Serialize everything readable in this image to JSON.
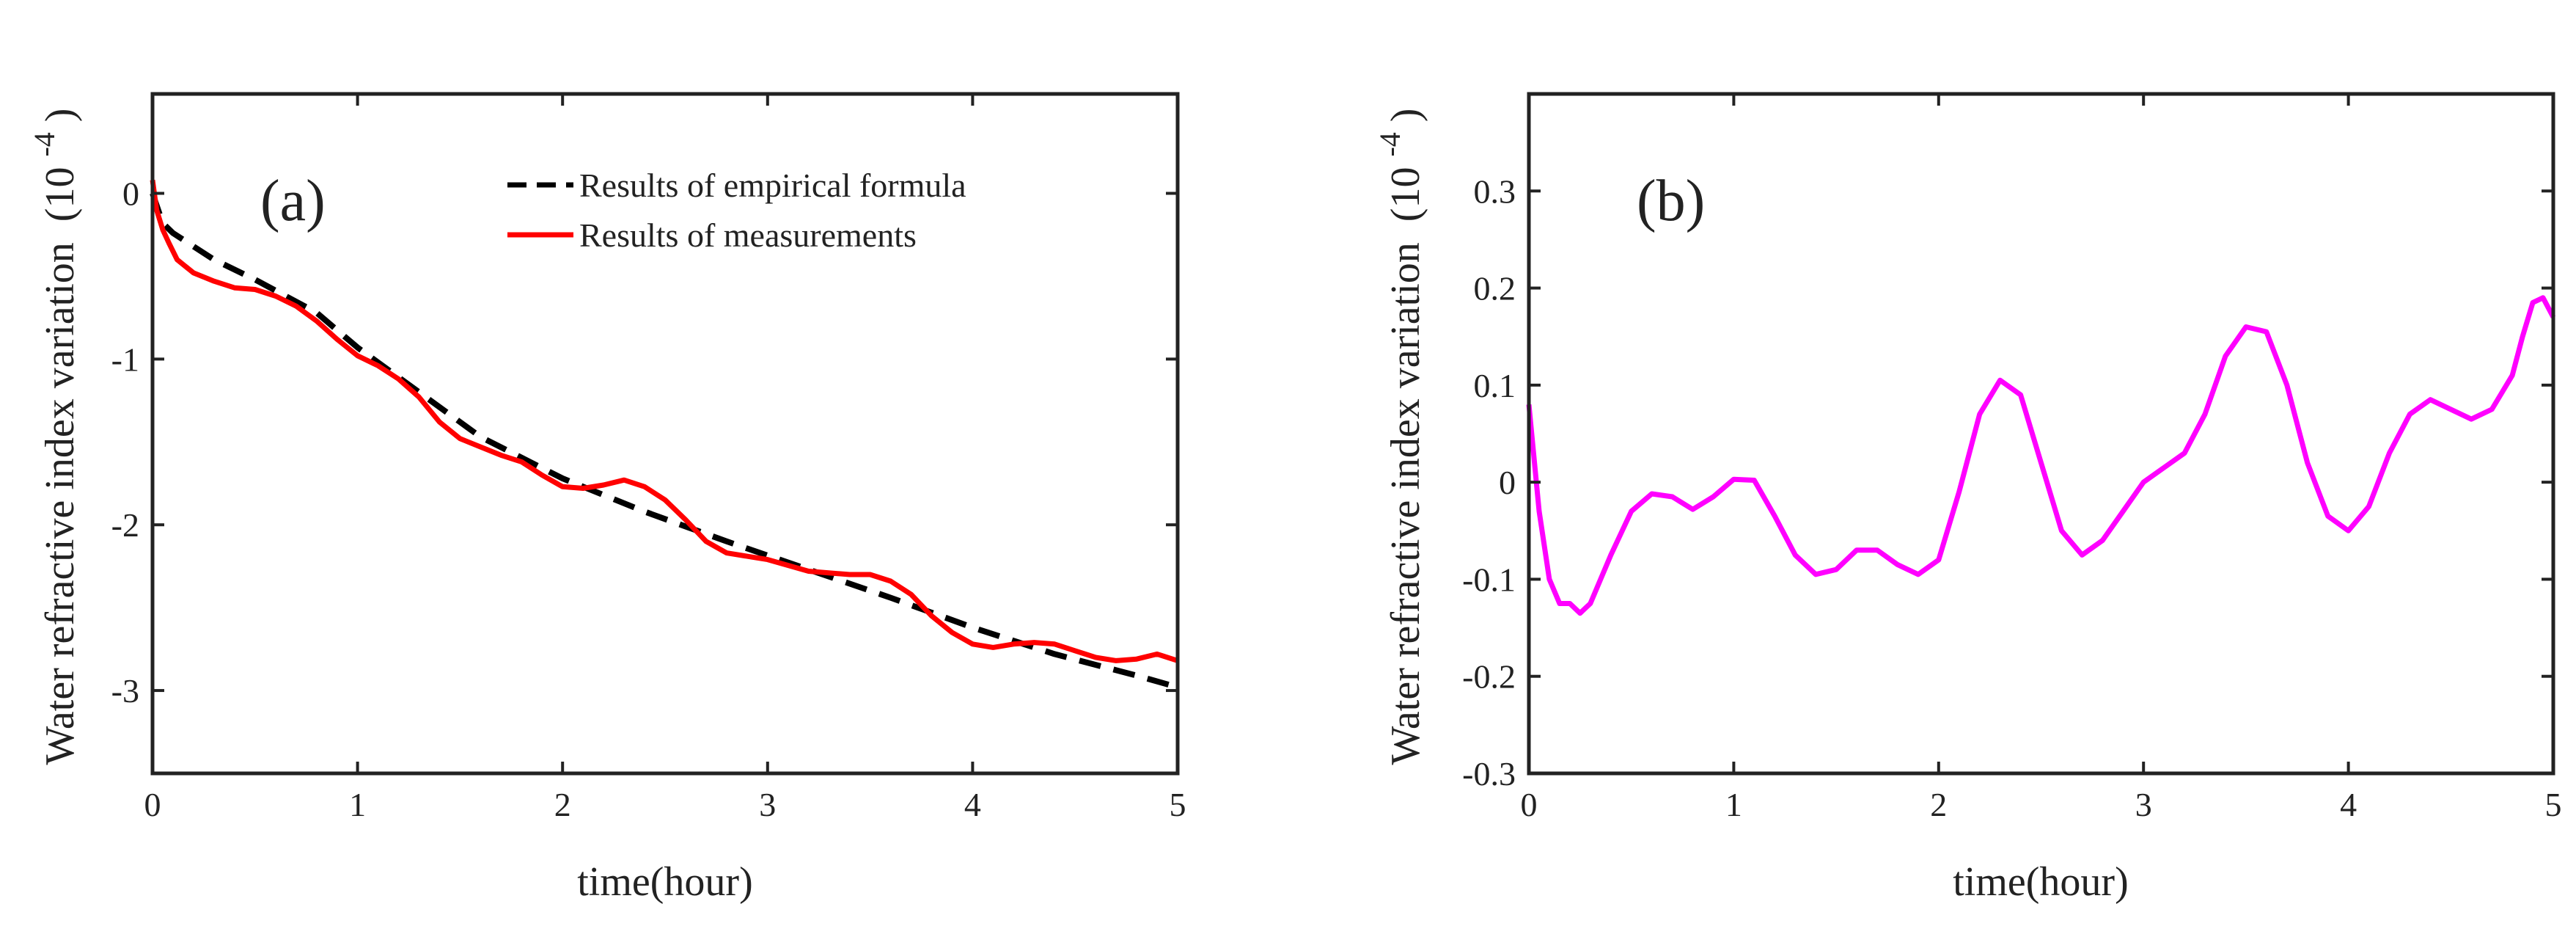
{
  "chart_data": [
    {
      "panel_label": "(a)",
      "type": "line",
      "xlabel": "time(hour)",
      "ylabel": "Water refractive index variation",
      "ylabel_unit_base": "(10",
      "ylabel_unit_exp": "-4",
      "ylabel_unit_close": ")",
      "xlim": [
        0,
        5
      ],
      "ylim": [
        -3.5,
        0.6
      ],
      "xticks": [
        0,
        1,
        2,
        3,
        4,
        5
      ],
      "xtick_labels": [
        "0",
        "1",
        "2",
        "3",
        "4",
        "5"
      ],
      "yticks": [
        0,
        -1,
        -2,
        -3
      ],
      "ytick_labels": [
        "0",
        "-1",
        "-2",
        "-3"
      ],
      "grid": false,
      "legend_position": "top-right",
      "series": [
        {
          "name": "Results of empirical formula",
          "color": "#000000",
          "style": "dashed",
          "x": [
            0,
            0.05,
            0.1,
            0.2,
            0.3,
            0.5,
            0.8,
            1.0,
            1.3,
            1.6,
            2.0,
            2.4,
            2.8,
            3.2,
            3.6,
            4.0,
            4.4,
            4.8,
            5.0
          ],
          "y": [
            0.0,
            -0.18,
            -0.24,
            -0.32,
            -0.4,
            -0.52,
            -0.72,
            -0.93,
            -1.2,
            -1.47,
            -1.72,
            -1.92,
            -2.1,
            -2.27,
            -2.44,
            -2.62,
            -2.78,
            -2.91,
            -2.98
          ]
        },
        {
          "name": "Results of measurements",
          "color": "#ff0000",
          "style": "solid",
          "x": [
            0,
            0.02,
            0.05,
            0.08,
            0.12,
            0.2,
            0.3,
            0.4,
            0.5,
            0.6,
            0.7,
            0.8,
            0.9,
            1.0,
            1.1,
            1.2,
            1.3,
            1.4,
            1.5,
            1.6,
            1.7,
            1.8,
            1.9,
            2.0,
            2.1,
            2.2,
            2.3,
            2.4,
            2.5,
            2.6,
            2.7,
            2.8,
            3.0,
            3.2,
            3.4,
            3.5,
            3.6,
            3.7,
            3.8,
            3.9,
            4.0,
            4.1,
            4.2,
            4.3,
            4.4,
            4.5,
            4.6,
            4.7,
            4.8,
            4.9,
            5.0
          ],
          "y": [
            0.08,
            -0.1,
            -0.22,
            -0.3,
            -0.4,
            -0.48,
            -0.53,
            -0.57,
            -0.58,
            -0.62,
            -0.68,
            -0.77,
            -0.88,
            -0.98,
            -1.04,
            -1.12,
            -1.23,
            -1.38,
            -1.48,
            -1.53,
            -1.58,
            -1.62,
            -1.7,
            -1.77,
            -1.78,
            -1.76,
            -1.73,
            -1.77,
            -1.85,
            -1.97,
            -2.1,
            -2.17,
            -2.21,
            -2.28,
            -2.3,
            -2.3,
            -2.34,
            -2.42,
            -2.55,
            -2.65,
            -2.72,
            -2.74,
            -2.72,
            -2.71,
            -2.72,
            -2.76,
            -2.8,
            -2.82,
            -2.81,
            -2.78,
            -2.82
          ]
        }
      ]
    },
    {
      "panel_label": "(b)",
      "type": "line",
      "xlabel": "time(hour)",
      "ylabel": "Water refractive index variation",
      "ylabel_unit_base": "(10",
      "ylabel_unit_exp": "-4",
      "ylabel_unit_close": ")",
      "xlim": [
        0,
        5
      ],
      "ylim": [
        -0.3,
        0.4
      ],
      "xticks": [
        0,
        1,
        2,
        3,
        4,
        5
      ],
      "xtick_labels": [
        "0",
        "1",
        "2",
        "3",
        "4",
        "5"
      ],
      "yticks": [
        0.3,
        0.2,
        0.1,
        0,
        -0.1,
        -0.2,
        -0.3
      ],
      "ytick_labels": [
        "0.3",
        "0.2",
        "0.1",
        "0",
        "-0.1",
        "-0.2",
        "-0.3"
      ],
      "grid": false,
      "series": [
        {
          "color": "#ff00ff",
          "style": "solid",
          "x": [
            0,
            0.05,
            0.1,
            0.15,
            0.2,
            0.25,
            0.3,
            0.4,
            0.5,
            0.6,
            0.7,
            0.8,
            0.9,
            1.0,
            1.1,
            1.2,
            1.3,
            1.4,
            1.5,
            1.6,
            1.7,
            1.8,
            1.9,
            2.0,
            2.1,
            2.2,
            2.3,
            2.4,
            2.5,
            2.6,
            2.7,
            2.8,
            2.9,
            3.0,
            3.1,
            3.2,
            3.3,
            3.4,
            3.5,
            3.6,
            3.7,
            3.8,
            3.9,
            4.0,
            4.1,
            4.2,
            4.3,
            4.4,
            4.5,
            4.6,
            4.7,
            4.8,
            4.85,
            4.9,
            4.95,
            5.0
          ],
          "y": [
            0.08,
            -0.03,
            -0.1,
            -0.125,
            -0.125,
            -0.135,
            -0.125,
            -0.075,
            -0.03,
            -0.012,
            -0.015,
            -0.028,
            -0.015,
            0.003,
            0.002,
            -0.035,
            -0.075,
            -0.095,
            -0.09,
            -0.07,
            -0.07,
            -0.085,
            -0.095,
            -0.08,
            -0.01,
            0.07,
            0.105,
            0.09,
            0.02,
            -0.05,
            -0.075,
            -0.06,
            -0.03,
            0.0,
            0.015,
            0.03,
            0.07,
            0.13,
            0.16,
            0.155,
            0.1,
            0.02,
            -0.035,
            -0.05,
            -0.025,
            0.03,
            0.07,
            0.085,
            0.075,
            0.065,
            0.075,
            0.11,
            0.15,
            0.185,
            0.19,
            0.17
          ]
        }
      ]
    }
  ]
}
